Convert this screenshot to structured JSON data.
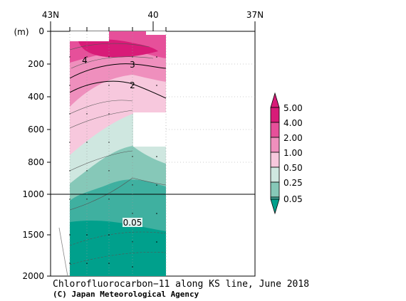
{
  "chart_data": {
    "type": "heatmap",
    "title": "Chlorofluorocarbon−11 along KS line, June 2018",
    "credit": "(C) Japan Meteorological Agency",
    "ylabel": "(m)",
    "x_ticks": [
      "43N",
      "40",
      "37N"
    ],
    "x_tick_values": [
      43,
      40,
      37
    ],
    "y_ticks_upper": [
      "0",
      "200",
      "400",
      "600",
      "800",
      "1000"
    ],
    "y_ticks_lower": [
      "1500",
      "2000"
    ],
    "xlim": [
      43,
      37
    ],
    "ylim": [
      0,
      2000
    ],
    "y_break": 1000,
    "legend": {
      "levels": [
        "5.00",
        "4.00",
        "2.00",
        "1.00",
        "0.50",
        "0.25",
        "0.05"
      ],
      "colors": [
        "#d81b78",
        "#e6509a",
        "#ef8fbd",
        "#f7c8dd",
        "#cfe7e0",
        "#86c8b8",
        "#3fb0a0",
        "#00a08c"
      ]
    },
    "contour_labels": [
      "4",
      "3",
      "2",
      "0.05"
    ],
    "station_latitudes": [
      42.2,
      41.5,
      40.7,
      40.2,
      39.5
    ]
  }
}
